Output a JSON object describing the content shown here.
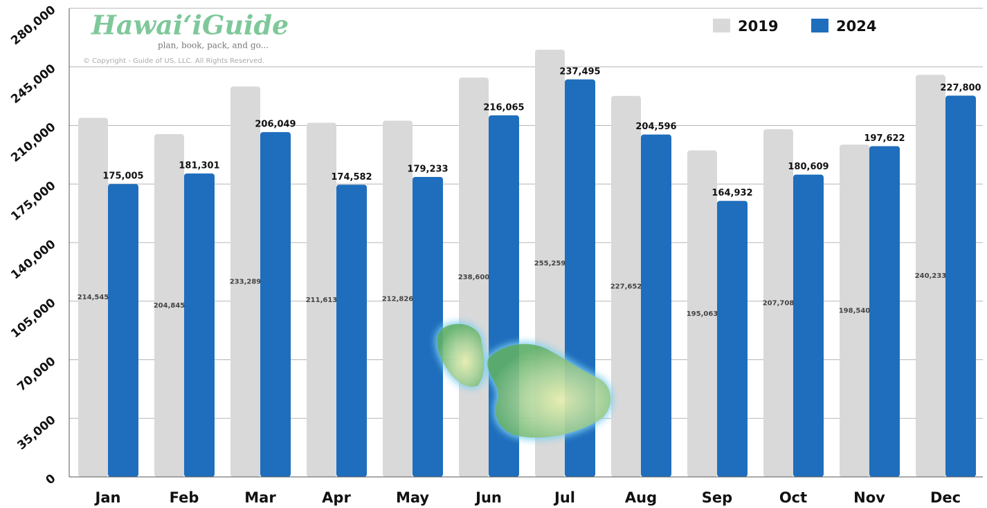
{
  "chart_data": {
    "type": "bar",
    "logo_title": "HawaiʻiGuide",
    "logo_tagline": "plan, book, pack, and go...",
    "copyright": "© Copyright - Guide of US, LLC. All Rights Reserved.",
    "categories": [
      "Jan",
      "Feb",
      "Mar",
      "Apr",
      "May",
      "Jun",
      "Jul",
      "Aug",
      "Sep",
      "Oct",
      "Nov",
      "Dec"
    ],
    "series": [
      {
        "name": "2019",
        "color": "#d9d9d9",
        "values": [
          214545,
          204845,
          233289,
          211613,
          212826,
          238600,
          255259,
          227652,
          195063,
          207708,
          198540,
          240233
        ],
        "value_labels": [
          "214,545",
          "204,845",
          "233,289",
          "211,613",
          "212,826",
          "238,600",
          "255,259",
          "227,652",
          "195,063",
          "207,708",
          "198,540",
          "240,233"
        ]
      },
      {
        "name": "2024",
        "color": "#1f6ebd",
        "values": [
          175005,
          181301,
          206049,
          174582,
          179233,
          216065,
          237495,
          204596,
          164932,
          180609,
          197622,
          227800
        ],
        "value_labels": [
          "175,005",
          "181,301",
          "206,049",
          "174,582",
          "179,233",
          "216,065",
          "237,495",
          "204,596",
          "164,932",
          "180,609",
          "197,622",
          "227,800"
        ]
      }
    ],
    "ylim": [
      0,
      280000
    ],
    "yticks": [
      0,
      {
        "value": 35000,
        "label": "35,000"
      },
      {
        "value": 70000,
        "label": "70,000"
      },
      {
        "value": 105000,
        "label": "105,000"
      },
      {
        "value": 140000,
        "label": "140,000"
      },
      {
        "value": 175000,
        "label": "175,000"
      },
      {
        "value": 210000,
        "label": "210,000"
      },
      {
        "value": 245000,
        "label": "245,000"
      },
      {
        "value": 280000,
        "label": "280,000"
      }
    ],
    "grid": true,
    "legend": "top-right"
  }
}
